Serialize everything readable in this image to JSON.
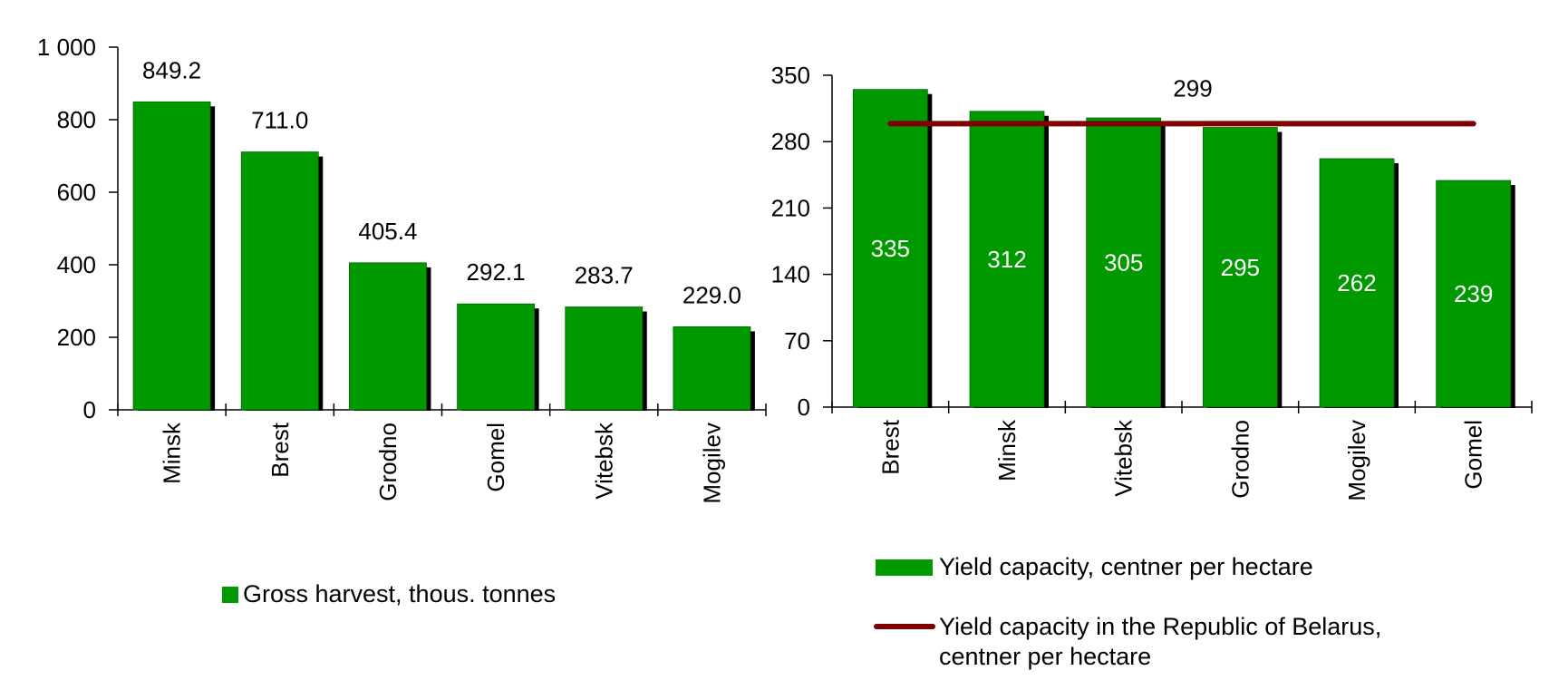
{
  "chart_data": [
    {
      "type": "bar",
      "categories": [
        "Minsk",
        "Brest",
        "Grodno",
        "Gomel",
        "Vitebsk",
        "Mogilev"
      ],
      "series": [
        {
          "name": "Gross harvest, thous. tonnes",
          "values": [
            849.2,
            711.0,
            405.4,
            292.1,
            283.7,
            229.0
          ],
          "data_labels": [
            "849.2",
            "711.0",
            "405.4",
            "292.1",
            "283.7",
            "229.0"
          ]
        }
      ],
      "ylim": [
        0,
        1000
      ],
      "yticks": [
        "0",
        "200",
        "400",
        "600",
        "800",
        "1 000"
      ],
      "ytick_values": [
        0,
        200,
        400,
        600,
        800,
        1000
      ],
      "grid": false,
      "legend": "bottom",
      "colors": {
        "bar": "#009900",
        "shadow": "#000000"
      }
    },
    {
      "type": "bar",
      "categories": [
        "Brest",
        "Minsk",
        "Vitebsk",
        "Grodno",
        "Mogilev",
        "Gomel"
      ],
      "series": [
        {
          "name": "Yield capacity, centner per hectare",
          "values": [
            335,
            312,
            305,
            295,
            262,
            239
          ],
          "data_labels": [
            "335",
            "312",
            "305",
            "295",
            "262",
            "239"
          ]
        },
        {
          "name": "Yield capacity in the Republic of Belarus, centner per hectare",
          "type": "line",
          "values": [
            299,
            299,
            299,
            299,
            299,
            299
          ],
          "data_label": "299"
        }
      ],
      "ylim": [
        0,
        350
      ],
      "yticks": [
        "0",
        "70",
        "140",
        "210",
        "280",
        "350"
      ],
      "ytick_values": [
        0,
        70,
        140,
        210,
        280,
        350
      ],
      "grid": false,
      "legend": "bottom",
      "colors": {
        "bar": "#009900",
        "shadow": "#000000",
        "line": "#7f0000"
      }
    }
  ],
  "legends": {
    "left": {
      "bar": "Gross harvest, thous. tonnes"
    },
    "right": {
      "bar": "Yield capacity, centner per hectare",
      "line_1": "Yield capacity in the Republic of Belarus,",
      "line_2": "centner per hectare"
    }
  }
}
